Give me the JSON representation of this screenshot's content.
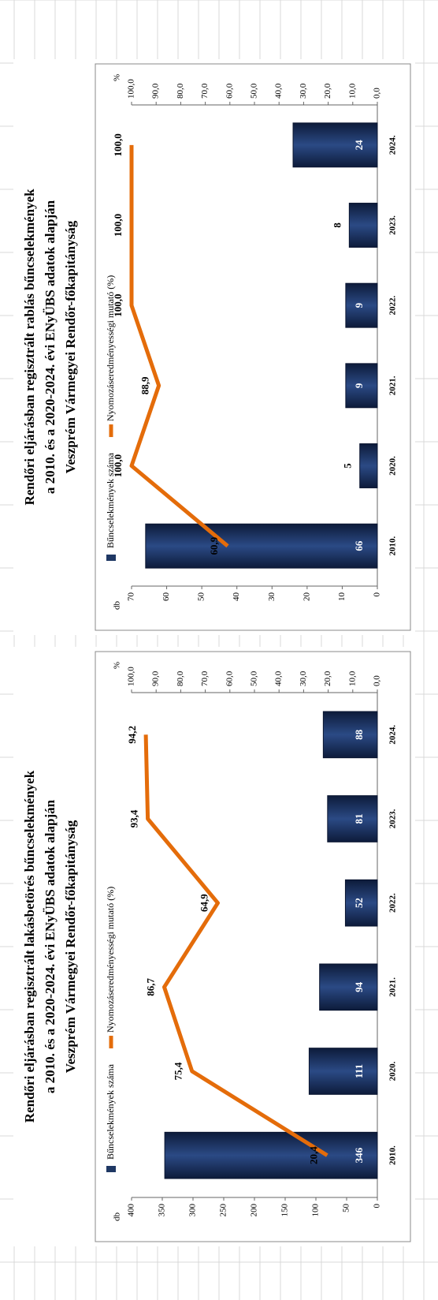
{
  "chart_data": [
    {
      "type": "bar",
      "title": "Rendőri eljárásban regisztrált lakásbetörés bűncselekmények",
      "subtitle": [
        "a 2010. és a 2020-2024. évi ENyÜBS adatok alapján",
        "Veszprém Vármegyei Rendőr-főkapitányság"
      ],
      "ylabel": "db",
      "y2label": "%",
      "categories": [
        "2010.",
        "2020.",
        "2021.",
        "2022.",
        "2023.",
        "2024."
      ],
      "series": [
        {
          "name": "Bűncselekmények száma",
          "type": "bar",
          "color": "#1f3864",
          "values": [
            346,
            111,
            94,
            52,
            81,
            88
          ]
        },
        {
          "name": "Nyomozáseredményességi mutató (%)",
          "type": "line",
          "axis": "y2",
          "color": "#e46c0a",
          "values": [
            20.4,
            75.4,
            86.7,
            64.9,
            93.4,
            94.2
          ],
          "value_labels": [
            "20,4",
            "75,4",
            "86,7",
            "64,9",
            "93,4",
            "94,2"
          ]
        }
      ],
      "ylim": [
        0,
        400
      ],
      "yticks": [
        0,
        50,
        100,
        150,
        200,
        250,
        300,
        350,
        400
      ],
      "y2lim": [
        0,
        100
      ],
      "y2ticks": [
        {
          "value": 0,
          "label": "0,0"
        },
        {
          "value": 10,
          "label": "10,0"
        },
        {
          "value": 20,
          "label": "20,0"
        },
        {
          "value": 30,
          "label": "30,0"
        },
        {
          "value": 40,
          "label": "40,0"
        },
        {
          "value": 50,
          "label": "50,0"
        },
        {
          "value": 60,
          "label": "60,0"
        },
        {
          "value": 70,
          "label": "70,0"
        },
        {
          "value": 80,
          "label": "80,0"
        },
        {
          "value": 90,
          "label": "90,0"
        },
        {
          "value": 100,
          "label": "100,0"
        }
      ]
    },
    {
      "type": "bar",
      "title": "Rendőri eljárásban regisztrált rablás bűncselekmények",
      "subtitle": [
        "a 2010. és a 2020-2024. évi ENyÜBS adatok alapján",
        "Veszprém Vármegyei Rendőr-főkapitányság"
      ],
      "ylabel": "db",
      "y2label": "%",
      "categories": [
        "2010.",
        "2020.",
        "2021.",
        "2022.",
        "2023.",
        "2024."
      ],
      "series": [
        {
          "name": "Bűncselekmények száma",
          "type": "bar",
          "color": "#1f3864",
          "values": [
            66,
            5,
            9,
            9,
            8,
            24
          ]
        },
        {
          "name": "Nyomozáseredményességi mutató (%)",
          "type": "line",
          "axis": "y2",
          "color": "#e46c0a",
          "values": [
            60.9,
            100,
            88.9,
            100,
            100,
            100
          ],
          "value_labels": [
            "60,9",
            "100,0",
            "88,9",
            "100,0",
            "100,0",
            "100,0"
          ]
        }
      ],
      "ylim": [
        0,
        70
      ],
      "yticks": [
        0,
        10,
        20,
        30,
        40,
        50,
        60,
        70
      ],
      "y2lim": [
        0,
        100
      ],
      "y2ticks": [
        {
          "value": 0,
          "label": "0,0"
        },
        {
          "value": 10,
          "label": "10,0"
        },
        {
          "value": 20,
          "label": "20,0"
        },
        {
          "value": 30,
          "label": "30,0"
        },
        {
          "value": 40,
          "label": "40,0"
        },
        {
          "value": 50,
          "label": "50,0"
        },
        {
          "value": 60,
          "label": "60,0"
        },
        {
          "value": 70,
          "label": "70,0"
        },
        {
          "value": 80,
          "label": "80,0"
        },
        {
          "value": 90,
          "label": "90,0"
        },
        {
          "value": 100,
          "label": "100,0"
        }
      ]
    }
  ]
}
